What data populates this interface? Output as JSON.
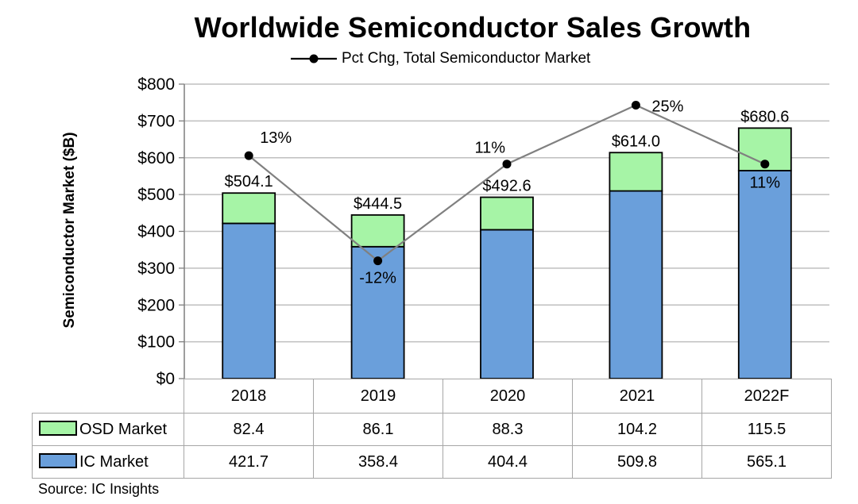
{
  "chart_data": {
    "type": "bar",
    "stacked": true,
    "title": "Worldwide Semiconductor Sales Growth",
    "ylabel": "Semiconductor Market ($B)",
    "ylim": [
      0,
      800
    ],
    "yticks": [
      "$0",
      "$100",
      "$200",
      "$300",
      "$400",
      "$500",
      "$600",
      "$700",
      "$800"
    ],
    "categories": [
      "2018",
      "2019",
      "2020",
      "2021",
      "2022F"
    ],
    "series": [
      {
        "name": "IC Market",
        "color": "#6a9fdb",
        "values": [
          421.7,
          358.4,
          404.4,
          509.8,
          565.1
        ],
        "display": [
          "421.7",
          "358.4",
          "404.4",
          "509.8",
          "565.1"
        ]
      },
      {
        "name": "OSD Market",
        "color": "#a6f4a6",
        "values": [
          82.4,
          86.1,
          88.3,
          104.2,
          115.5
        ],
        "display": [
          "82.4",
          "86.1",
          "88.3",
          "104.2",
          "115.5"
        ]
      }
    ],
    "totals": [
      "$504.1",
      "$444.5",
      "$492.6",
      "$614.0",
      "$680.6"
    ],
    "line_series": {
      "name": "Pct Chg, Total Semiconductor Market",
      "values": [
        13,
        -12,
        11,
        25,
        11
      ],
      "labels": [
        "13%",
        "-12%",
        "11%",
        "25%",
        "11%"
      ],
      "right_axis_range": [
        -40,
        30
      ],
      "color": "#808080"
    },
    "grid": true,
    "legend": "top",
    "source": "Source: IC Insights"
  }
}
